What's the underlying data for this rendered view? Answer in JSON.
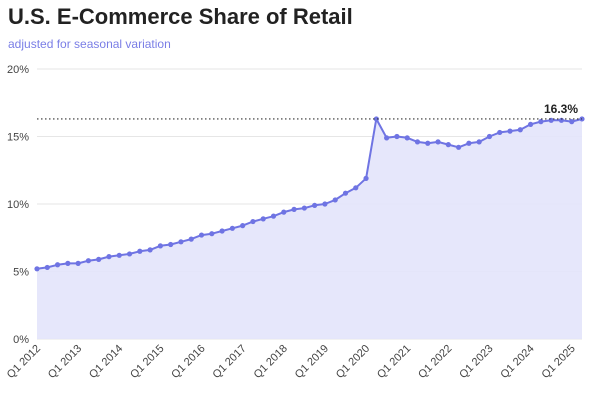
{
  "header": {
    "title": "U.S. E-Commerce Share of Retail",
    "subtitle": "adjusted for seasonal variation"
  },
  "colors": {
    "line": "#6f74e3",
    "fill": "#e3e4fb",
    "grid": "#e6e6e6",
    "reference_line": "#333333",
    "tick_text": "#444444"
  },
  "chart_data": {
    "type": "area",
    "title": "U.S. E-Commerce Share of Retail",
    "subtitle": "adjusted for seasonal variation",
    "xlabel": "",
    "ylabel": "",
    "ylim": [
      0,
      20
    ],
    "y_ticks": [
      0,
      5,
      10,
      15,
      20
    ],
    "y_tick_labels": [
      "0%",
      "5%",
      "10%",
      "15%",
      "20%"
    ],
    "grid": "horizontal",
    "x_tick_labels": [
      "Q1 2012",
      "Q1 2013",
      "Q1 2014",
      "Q1 2015",
      "Q1 2016",
      "Q1 2017",
      "Q1 2018",
      "Q1 2019",
      "Q1 2020",
      "Q1 2021",
      "Q1 2022",
      "Q1 2023",
      "Q1 2024",
      "Q1 2025"
    ],
    "x": [
      "Q1 2012",
      "Q2 2012",
      "Q3 2012",
      "Q4 2012",
      "Q1 2013",
      "Q2 2013",
      "Q3 2013",
      "Q4 2013",
      "Q1 2014",
      "Q2 2014",
      "Q3 2014",
      "Q4 2014",
      "Q1 2015",
      "Q2 2015",
      "Q3 2015",
      "Q4 2015",
      "Q1 2016",
      "Q2 2016",
      "Q3 2016",
      "Q4 2016",
      "Q1 2017",
      "Q2 2017",
      "Q3 2017",
      "Q4 2017",
      "Q1 2018",
      "Q2 2018",
      "Q3 2018",
      "Q4 2018",
      "Q1 2019",
      "Q2 2019",
      "Q3 2019",
      "Q4 2019",
      "Q1 2020",
      "Q2 2020",
      "Q3 2020",
      "Q4 2020",
      "Q1 2021",
      "Q2 2021",
      "Q3 2021",
      "Q4 2021",
      "Q1 2022",
      "Q2 2022",
      "Q3 2022",
      "Q4 2022",
      "Q1 2023",
      "Q2 2023",
      "Q3 2023",
      "Q4 2023",
      "Q1 2024",
      "Q2 2024",
      "Q3 2024",
      "Q4 2024",
      "Q1 2025",
      "Q2 2025"
    ],
    "values": [
      5.2,
      5.3,
      5.5,
      5.6,
      5.6,
      5.8,
      5.9,
      6.1,
      6.2,
      6.3,
      6.5,
      6.6,
      6.9,
      7.0,
      7.2,
      7.4,
      7.7,
      7.8,
      8.0,
      8.2,
      8.4,
      8.7,
      8.9,
      9.1,
      9.4,
      9.6,
      9.7,
      9.9,
      10.0,
      10.3,
      10.8,
      11.2,
      11.9,
      16.3,
      14.9,
      15.0,
      14.9,
      14.6,
      14.5,
      14.6,
      14.4,
      14.2,
      14.5,
      14.6,
      15.0,
      15.3,
      15.4,
      15.5,
      15.9,
      16.1,
      16.2,
      16.2,
      16.1,
      16.3
    ],
    "reference_line": {
      "value": 16.3,
      "style": "dotted",
      "label": "16.3%"
    }
  }
}
